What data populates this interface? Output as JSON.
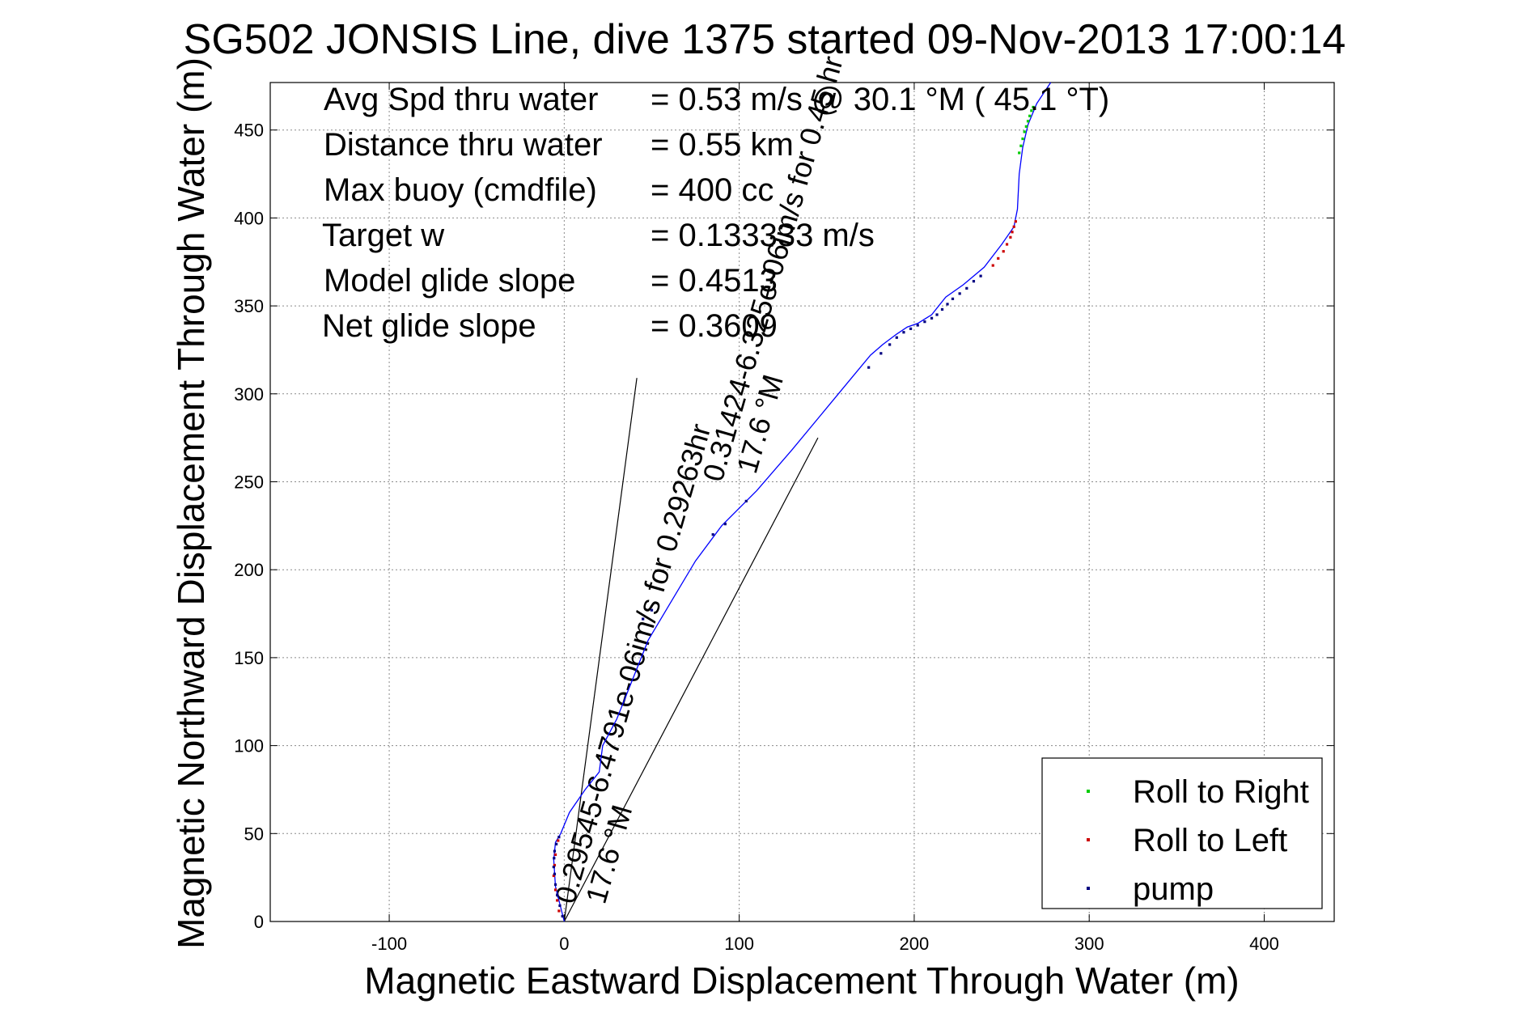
{
  "chart_data": {
    "type": "line",
    "title": "SG502 JONSIS Line, dive 1375 started 09-Nov-2013 17:00:14",
    "xlabel": "Magnetic Eastward Displacement Through Water (m)",
    "ylabel": "Magnetic Northward Displacement Through Water (m)",
    "xlim": [
      -168,
      440
    ],
    "ylim": [
      0,
      477
    ],
    "xticks": [
      -100,
      0,
      100,
      200,
      300,
      400
    ],
    "yticks": [
      0,
      50,
      100,
      150,
      200,
      250,
      300,
      350,
      400,
      450
    ],
    "xtick_labels": [
      "-100",
      "0",
      "100",
      "200",
      "300",
      "400"
    ],
    "ytick_labels": [
      "0",
      "50",
      "100",
      "150",
      "200",
      "250",
      "300",
      "350",
      "400",
      "450"
    ],
    "grid": true,
    "legend_position": "bottom-right",
    "info_lines": [
      {
        "label": "Avg Spd thru water",
        "value": "=  0.53 m/s @  30.1 °M ( 45.1 °T)"
      },
      {
        "label": "Distance thru water",
        "value": "=  0.55 km"
      },
      {
        "label": "Max buoy (cmdfile)",
        "value": "= 400 cc"
      },
      {
        "label": "Target w",
        "value": "= 0.133333 m/s"
      },
      {
        "label": "Model glide slope",
        "value": "= 0.4513"
      },
      {
        "label": "Net glide slope",
        "value": "= 0.3609"
      }
    ],
    "annotations": [
      {
        "text": "0.29545-6.4791e-06im/s for 0.29263hr",
        "anchor": [
          0,
          0
        ],
        "angle_deg": 74
      },
      {
        "text": "17.6 °M",
        "anchor": [
          0,
          0
        ],
        "angle_deg": 74
      },
      {
        "text": "0.31424-6.325e-06im/s for 0.45 hr",
        "anchor": [
          90,
          240
        ],
        "angle_deg": 74
      },
      {
        "text": "17.6 °M",
        "anchor": [
          90,
          240
        ],
        "angle_deg": 74
      }
    ],
    "guide_lines": [
      {
        "x": [
          0,
          41.5
        ],
        "y": [
          0,
          309
        ]
      },
      {
        "x": [
          0,
          145
        ],
        "y": [
          0,
          275
        ]
      }
    ],
    "track": {
      "name": "track",
      "color": "#0000ff",
      "x": [
        0,
        -2,
        -5,
        -6,
        -5,
        -2,
        3,
        12,
        20,
        22,
        30,
        40,
        48,
        60,
        75,
        90,
        110,
        130,
        150,
        165,
        175,
        182,
        190,
        196,
        202,
        210,
        218,
        228,
        240,
        250,
        257,
        259,
        260,
        262,
        265,
        270,
        278
      ],
      "y": [
        0,
        8,
        20,
        35,
        45,
        50,
        62,
        75,
        85,
        100,
        115,
        140,
        160,
        180,
        205,
        225,
        245,
        268,
        292,
        310,
        322,
        328,
        334,
        338,
        340,
        345,
        355,
        362,
        372,
        385,
        395,
        405,
        425,
        440,
        453,
        465,
        477
      ]
    },
    "series": [
      {
        "name": "Roll to Right",
        "color": "#00cc00",
        "x": [
          260,
          261,
          262,
          263,
          264,
          265,
          266,
          267,
          268
        ],
        "y": [
          437,
          441,
          445,
          449,
          452,
          455,
          458,
          461,
          463
        ]
      },
      {
        "name": "Roll to Left",
        "color": "#cc0000",
        "x": [
          -3,
          -4,
          -5,
          -6,
          -5.5,
          -5,
          -3.5,
          245,
          248,
          251,
          253,
          255,
          256,
          257,
          258
        ],
        "y": [
          6,
          12,
          18,
          26,
          32,
          38,
          46,
          373,
          377,
          381,
          385,
          389,
          392,
          395,
          398
        ]
      },
      {
        "name": "pump",
        "color": "#000080",
        "x": [
          -1,
          -2.5,
          -4,
          -5,
          -5.5,
          -6,
          -5.8,
          -5.5,
          -4.5,
          -3,
          45,
          50,
          85,
          92,
          104,
          174,
          181,
          186,
          190,
          194,
          198,
          202,
          206,
          210,
          213,
          216,
          219,
          222,
          226,
          230,
          234,
          238
        ],
        "y": [
          3,
          9,
          15,
          21,
          27,
          31,
          36,
          40,
          44,
          48,
          172,
          177,
          220,
          226,
          239,
          315,
          323,
          328,
          332,
          335,
          337,
          339,
          341,
          343,
          345,
          348,
          351,
          354,
          357,
          360,
          364,
          367
        ]
      }
    ]
  }
}
